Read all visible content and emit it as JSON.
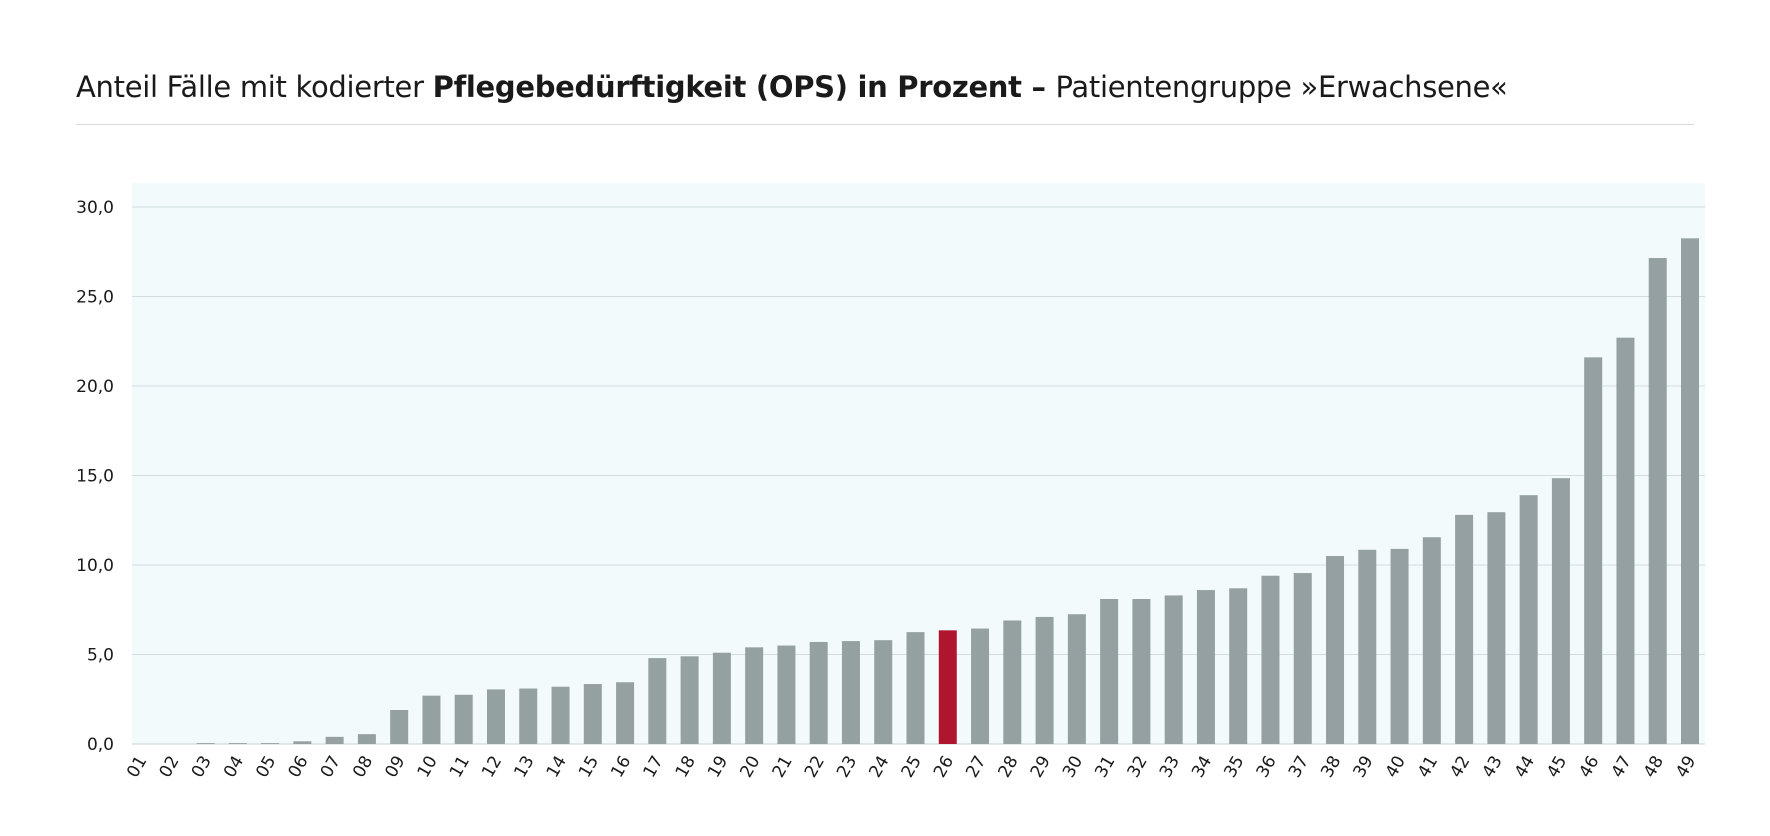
{
  "title": {
    "part1": "Anteil Fälle mit kodierter ",
    "part2": "Pflegebedürftigkeit (OPS) in Prozent – ",
    "part3": "Patientengruppe »Erwachsene«"
  },
  "colors": {
    "bar": "#95a0a3",
    "highlight": "#b01530",
    "plot_background": "#f2fafb",
    "grid": "#d3dcdf"
  },
  "chart_data": {
    "type": "bar",
    "title": "Anteil Fälle mit kodierter Pflegebedürftigkeit (OPS) in Prozent – Patientengruppe »Erwachsene«",
    "xlabel": "",
    "ylabel": "",
    "ylim": [
      0,
      30
    ],
    "yticks": [
      "0,0",
      "5,0",
      "10,0",
      "15,0",
      "20,0",
      "25,0",
      "30,0"
    ],
    "ytick_values": [
      0,
      5,
      10,
      15,
      20,
      25,
      30
    ],
    "grid": true,
    "highlight_category": "26",
    "categories": [
      "01",
      "02",
      "03",
      "04",
      "05",
      "06",
      "07",
      "08",
      "09",
      "10",
      "11",
      "12",
      "13",
      "14",
      "15",
      "16",
      "17",
      "18",
      "19",
      "20",
      "21",
      "22",
      "23",
      "24",
      "25",
      "26",
      "27",
      "28",
      "29",
      "30",
      "31",
      "32",
      "33",
      "34",
      "35",
      "36",
      "37",
      "38",
      "39",
      "40",
      "41",
      "42",
      "43",
      "44",
      "45",
      "46",
      "47",
      "48",
      "49"
    ],
    "values": [
      0,
      0,
      0.05,
      0.05,
      0.05,
      0.15,
      0.4,
      0.55,
      1.9,
      2.7,
      2.75,
      3.05,
      3.1,
      3.2,
      3.35,
      3.45,
      4.8,
      4.9,
      5.1,
      5.4,
      5.5,
      5.7,
      5.75,
      5.8,
      6.25,
      6.35,
      6.45,
      6.9,
      7.1,
      7.25,
      8.1,
      8.1,
      8.3,
      8.6,
      8.7,
      9.4,
      9.55,
      10.5,
      10.85,
      10.9,
      11.55,
      12.8,
      12.95,
      13.9,
      14.85,
      21.6,
      22.7,
      27.15,
      28.25
    ]
  }
}
